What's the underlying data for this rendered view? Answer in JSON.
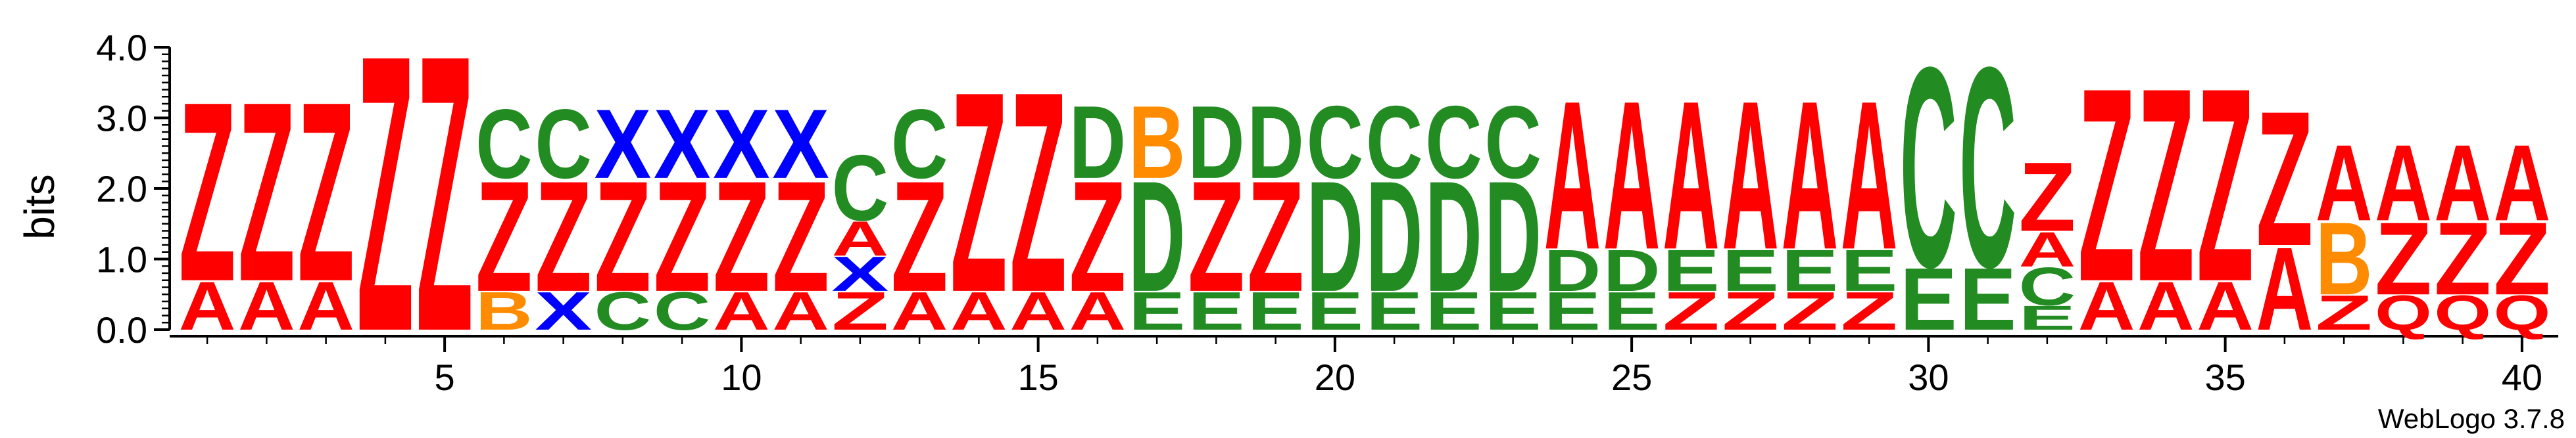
{
  "chart_data": {
    "type": "sequence-logo",
    "ylabel": "bits",
    "ylim": [
      0,
      4.0
    ],
    "y_ticks": [
      "0.0",
      "1.0",
      "2.0",
      "3.0",
      "4.0"
    ],
    "x_ticks": [
      "5",
      "10",
      "15",
      "20",
      "25",
      "30",
      "35",
      "40"
    ],
    "footer": "WebLogo 3.7.8",
    "colors": {
      "Z": "#ff0000",
      "A": "#ff0000",
      "Q": "#ff0000",
      "C": "#228b22",
      "D": "#228b22",
      "E": "#228b22",
      "X": "#0000ff",
      "B": "#ff8c00"
    },
    "positions": [
      {
        "pos": 1,
        "stack": [
          [
            "A",
            0.7
          ],
          [
            "Z",
            2.6
          ]
        ]
      },
      {
        "pos": 2,
        "stack": [
          [
            "A",
            0.7
          ],
          [
            "Z",
            2.6
          ]
        ]
      },
      {
        "pos": 3,
        "stack": [
          [
            "A",
            0.7
          ],
          [
            "Z",
            2.6
          ]
        ]
      },
      {
        "pos": 4,
        "stack": [
          [
            "Z",
            4.0
          ]
        ]
      },
      {
        "pos": 5,
        "stack": [
          [
            "Z",
            4.0
          ]
        ]
      },
      {
        "pos": 6,
        "stack": [
          [
            "B",
            0.55
          ],
          [
            "Z",
            1.6
          ],
          [
            "C",
            1.0
          ]
        ]
      },
      {
        "pos": 7,
        "stack": [
          [
            "X",
            0.55
          ],
          [
            "Z",
            1.6
          ],
          [
            "C",
            1.0
          ]
        ]
      },
      {
        "pos": 8,
        "stack": [
          [
            "C",
            0.55
          ],
          [
            "Z",
            1.6
          ],
          [
            "X",
            1.0
          ]
        ]
      },
      {
        "pos": 9,
        "stack": [
          [
            "C",
            0.55
          ],
          [
            "Z",
            1.6
          ],
          [
            "X",
            1.0
          ]
        ]
      },
      {
        "pos": 10,
        "stack": [
          [
            "A",
            0.55
          ],
          [
            "Z",
            1.6
          ],
          [
            "X",
            1.0
          ]
        ]
      },
      {
        "pos": 11,
        "stack": [
          [
            "A",
            0.55
          ],
          [
            "Z",
            1.6
          ],
          [
            "X",
            1.0
          ]
        ]
      },
      {
        "pos": 12,
        "stack": [
          [
            "Z",
            0.55
          ],
          [
            "X",
            0.5
          ],
          [
            "A",
            0.5
          ],
          [
            "C",
            0.95
          ]
        ]
      },
      {
        "pos": 13,
        "stack": [
          [
            "A",
            0.55
          ],
          [
            "Z",
            1.6
          ],
          [
            "C",
            1.0
          ]
        ]
      },
      {
        "pos": 14,
        "stack": [
          [
            "A",
            0.55
          ],
          [
            "Z",
            2.9
          ]
        ]
      },
      {
        "pos": 15,
        "stack": [
          [
            "A",
            0.55
          ],
          [
            "Z",
            2.9
          ]
        ]
      },
      {
        "pos": 16,
        "stack": [
          [
            "A",
            0.55
          ],
          [
            "Z",
            1.6
          ],
          [
            "D",
            1.05
          ]
        ]
      },
      {
        "pos": 17,
        "stack": [
          [
            "E",
            0.55
          ],
          [
            "D",
            1.6
          ],
          [
            "B",
            1.05
          ]
        ]
      },
      {
        "pos": 18,
        "stack": [
          [
            "E",
            0.55
          ],
          [
            "Z",
            1.6
          ],
          [
            "D",
            1.05
          ]
        ]
      },
      {
        "pos": 19,
        "stack": [
          [
            "E",
            0.55
          ],
          [
            "Z",
            1.6
          ],
          [
            "D",
            1.05
          ]
        ]
      },
      {
        "pos": 20,
        "stack": [
          [
            "E",
            0.55
          ],
          [
            "D",
            1.6
          ],
          [
            "C",
            1.05
          ]
        ]
      },
      {
        "pos": 21,
        "stack": [
          [
            "E",
            0.55
          ],
          [
            "D",
            1.6
          ],
          [
            "C",
            1.05
          ]
        ]
      },
      {
        "pos": 22,
        "stack": [
          [
            "E",
            0.55
          ],
          [
            "D",
            1.6
          ],
          [
            "C",
            1.05
          ]
        ]
      },
      {
        "pos": 23,
        "stack": [
          [
            "E",
            0.55
          ],
          [
            "D",
            1.6
          ],
          [
            "C",
            1.05
          ]
        ]
      },
      {
        "pos": 24,
        "stack": [
          [
            "E",
            0.55
          ],
          [
            "D",
            0.6
          ],
          [
            "A",
            2.15
          ]
        ]
      },
      {
        "pos": 25,
        "stack": [
          [
            "E",
            0.55
          ],
          [
            "D",
            0.6
          ],
          [
            "A",
            2.15
          ]
        ]
      },
      {
        "pos": 26,
        "stack": [
          [
            "Z",
            0.55
          ],
          [
            "E",
            0.6
          ],
          [
            "A",
            2.15
          ]
        ]
      },
      {
        "pos": 27,
        "stack": [
          [
            "Z",
            0.55
          ],
          [
            "E",
            0.6
          ],
          [
            "A",
            2.15
          ]
        ]
      },
      {
        "pos": 28,
        "stack": [
          [
            "Z",
            0.55
          ],
          [
            "E",
            0.6
          ],
          [
            "A",
            2.15
          ]
        ]
      },
      {
        "pos": 29,
        "stack": [
          [
            "Z",
            0.55
          ],
          [
            "E",
            0.6
          ],
          [
            "A",
            2.15
          ]
        ]
      },
      {
        "pos": 30,
        "stack": [
          [
            "E",
            0.9
          ],
          [
            "C",
            2.9
          ]
        ]
      },
      {
        "pos": 31,
        "stack": [
          [
            "E",
            0.9
          ],
          [
            "C",
            2.9
          ]
        ]
      },
      {
        "pos": 32,
        "stack": [
          [
            "E",
            0.35
          ],
          [
            "C",
            0.55
          ],
          [
            "A",
            0.5
          ],
          [
            "Z",
            1.0
          ]
        ]
      },
      {
        "pos": 33,
        "stack": [
          [
            "A",
            0.7
          ],
          [
            "Z",
            2.8
          ]
        ]
      },
      {
        "pos": 34,
        "stack": [
          [
            "A",
            0.7
          ],
          [
            "Z",
            2.8
          ]
        ]
      },
      {
        "pos": 35,
        "stack": [
          [
            "A",
            0.7
          ],
          [
            "Z",
            2.8
          ]
        ]
      },
      {
        "pos": 36,
        "stack": [
          [
            "A",
            1.2
          ],
          [
            "Z",
            1.95
          ]
        ]
      },
      {
        "pos": 37,
        "stack": [
          [
            "Z",
            0.5
          ],
          [
            "B",
            1.05
          ],
          [
            "A",
            1.1
          ]
        ]
      },
      {
        "pos": 38,
        "stack": [
          [
            "Q",
            0.5
          ],
          [
            "Z",
            1.05
          ],
          [
            "A",
            1.1
          ]
        ]
      },
      {
        "pos": 39,
        "stack": [
          [
            "Q",
            0.5
          ],
          [
            "Z",
            1.05
          ],
          [
            "A",
            1.1
          ]
        ]
      },
      {
        "pos": 40,
        "stack": [
          [
            "Q",
            0.5
          ],
          [
            "Z",
            1.05
          ],
          [
            "A",
            1.1
          ]
        ]
      }
    ]
  }
}
